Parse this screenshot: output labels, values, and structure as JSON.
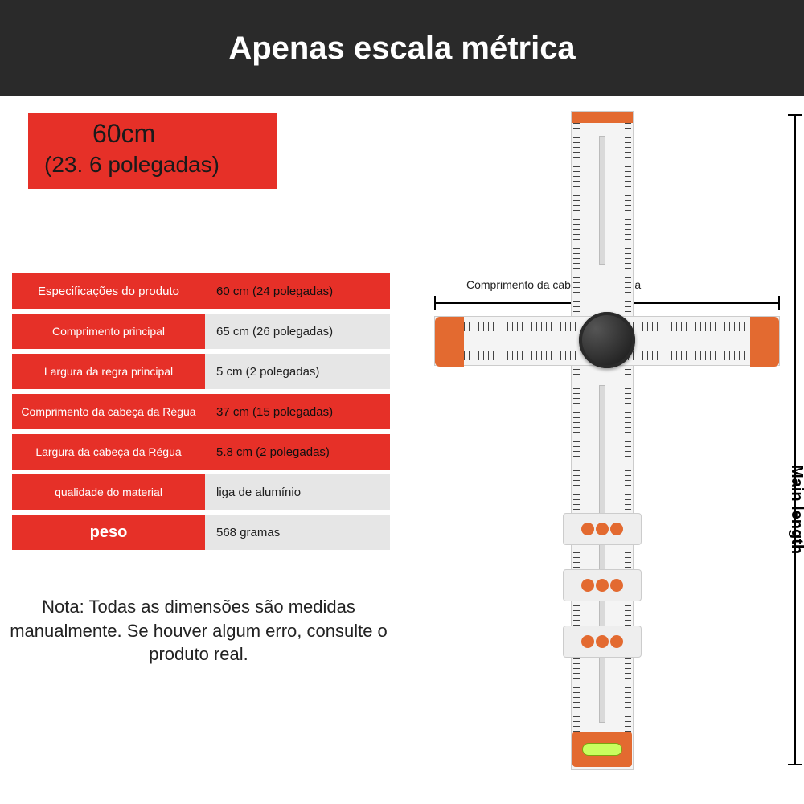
{
  "header": {
    "title": "Apenas escala métrica"
  },
  "badge": {
    "cm": "60cm",
    "inches": "(23. 6 polegadas)"
  },
  "specs": {
    "rows": [
      {
        "label": "Especificações do produto",
        "value": "60 cm (24 polegadas)",
        "red": true
      },
      {
        "label": "Comprimento principal",
        "value": "65 cm (26 polegadas)",
        "red": false
      },
      {
        "label": "Largura da regra principal",
        "value": "5 cm (2 polegadas)",
        "red": false
      },
      {
        "label": "Comprimento da cabeça da Régua",
        "value": "37 cm (15 polegadas)",
        "red": true
      },
      {
        "label": "Largura da cabeça da Régua",
        "value": "5.8 cm (2 polegadas)",
        "red": true
      },
      {
        "label": "qualidade do material",
        "value": "liga de alumínio",
        "red": false
      },
      {
        "label": "peso",
        "value": "568 gramas",
        "red": false
      }
    ]
  },
  "note": "Nota: Todas as dimensões são medidas manualmente. Se houver algum erro, consulte o produto real.",
  "diagram": {
    "head_label": "Comprimento da cabeça da Régua",
    "main_length_label": "Main length"
  },
  "colors": {
    "accent_red": "#e63028",
    "accent_orange": "#e36a30",
    "header_bg": "#2a2a2a",
    "value_bg": "#e6e6e6"
  }
}
